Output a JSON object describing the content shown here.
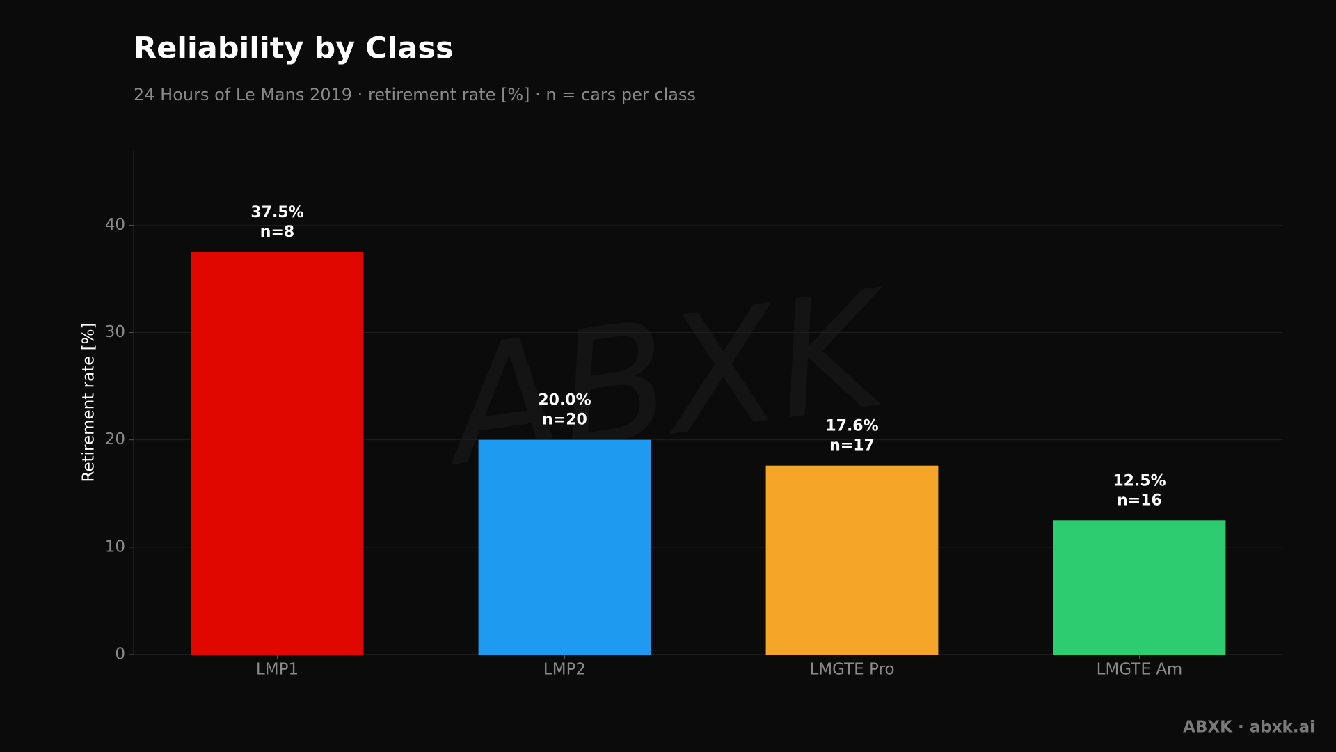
{
  "chart_data": {
    "type": "bar",
    "title": "Reliability by Class",
    "subtitle": "24 Hours of Le Mans 2019 · retirement rate [%] · n = cars per class",
    "y_label": "Retirement rate [%]",
    "categories": [
      "LMP1",
      "LMP2",
      "LMGTE Pro",
      "LMGTE Am"
    ],
    "values": [
      37.5,
      20.0,
      17.6,
      12.5
    ],
    "value_labels": [
      "37.5%",
      "20.0%",
      "17.6%",
      "12.5%"
    ],
    "n_labels": [
      "n=8",
      "n=20",
      "n=17",
      "n=16"
    ],
    "colors": [
      "#e00700",
      "#1e9bf0",
      "#f5a628",
      "#2ecc71"
    ],
    "ylim": [
      0,
      46.9
    ],
    "yticks": [
      0,
      10,
      20,
      30,
      40
    ],
    "grid": true,
    "watermark": "ABXK",
    "footer": "ABXK · abxk.ai"
  }
}
